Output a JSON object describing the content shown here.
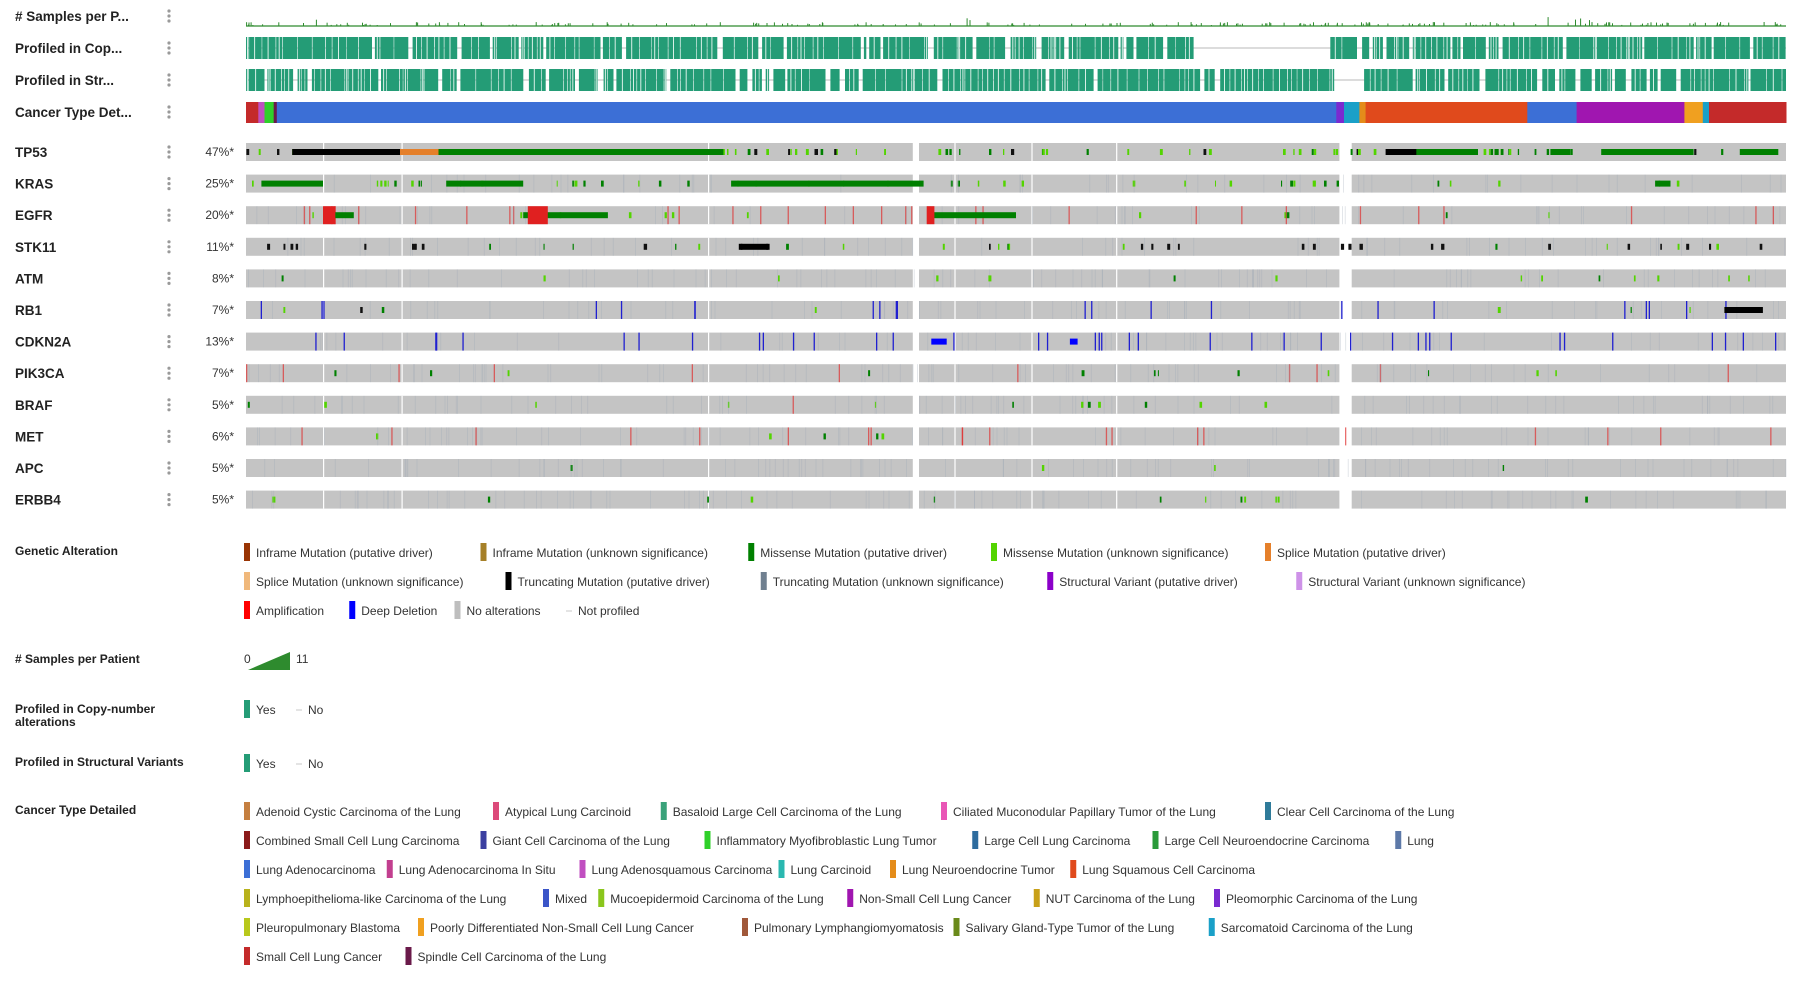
{
  "chart_data": {
    "type": "oncoprint",
    "clinical_tracks": [
      {
        "key": "samples",
        "label": "# Samples per P...",
        "kind": "bars"
      },
      {
        "key": "cna",
        "label": "Profiled in Cop...",
        "kind": "profiled"
      },
      {
        "key": "sv",
        "label": "Profiled in Str...",
        "kind": "profiled"
      },
      {
        "key": "cancer",
        "label": "Cancer Type Det...",
        "kind": "category"
      }
    ],
    "genes": [
      {
        "name": "TP53",
        "pct": "47%*"
      },
      {
        "name": "KRAS",
        "pct": "25%*"
      },
      {
        "name": "EGFR",
        "pct": "20%*"
      },
      {
        "name": "STK11",
        "pct": "11%*"
      },
      {
        "name": "ATM",
        "pct": "8%*"
      },
      {
        "name": "RB1",
        "pct": "7%*"
      },
      {
        "name": "CDKN2A",
        "pct": "13%*"
      },
      {
        "name": "PIK3CA",
        "pct": "7%*"
      },
      {
        "name": "BRAF",
        "pct": "5%*"
      },
      {
        "name": "MET",
        "pct": "6%*"
      },
      {
        "name": "APC",
        "pct": "5%*"
      },
      {
        "name": "ERBB4",
        "pct": "5%*"
      }
    ],
    "cancer_type_bar": [
      {
        "type": "Small Cell Lung Cancer",
        "share": 0.008
      },
      {
        "type": "Lung Adenosquamous Carcinoma",
        "share": 0.004
      },
      {
        "type": "Inflammatory Myofibroblastic Lung Tumor",
        "share": 0.006
      },
      {
        "type": "Spindle Cell Carcinoma of the Lung",
        "share": 0.002
      },
      {
        "type": "Lung Adenocarcinoma",
        "share": 0.688
      },
      {
        "type": "Pleomorphic Carcinoma of the Lung",
        "share": 0.005
      },
      {
        "type": "Sarcomatoid Carcinoma of the Lung",
        "share": 0.01
      },
      {
        "type": "Lung Neuroendocrine Tumor",
        "share": 0.004
      },
      {
        "type": "Lung Squamous Cell Carcinoma",
        "share": 0.105
      },
      {
        "type": "Lung Adenocarcinoma",
        "share": 0.032
      },
      {
        "type": "Non-Small Cell Lung Cancer",
        "share": 0.07
      },
      {
        "type": "Poorly Differentiated Non-Small Cell Lung Cancer",
        "share": 0.012
      },
      {
        "type": "Sarcomatoid Carcinoma of the Lung",
        "share": 0.004
      },
      {
        "type": "Small Cell Lung Cancer",
        "share": 0.05
      }
    ],
    "segment_fractions": [
      [
        0.0,
        0.101
      ],
      [
        0.103,
        0.433
      ],
      [
        0.436,
        0.51
      ],
      [
        0.512,
        0.563
      ],
      [
        0.565,
        0.71
      ],
      [
        0.712,
        0.71
      ],
      [
        0.718,
        0.721
      ],
      [
        0.723,
        0.804
      ],
      [
        0.806,
        1.0
      ]
    ],
    "segment_fractions_clinical": [
      [
        0.0,
        0.47
      ],
      [
        0.476,
        0.71
      ],
      [
        0.718,
        1.0
      ]
    ],
    "genetic_alteration_legend": [
      {
        "label": "Inframe Mutation (putative driver)",
        "color": "#993404"
      },
      {
        "label": "Inframe Mutation (unknown significance)",
        "color": "#a68028"
      },
      {
        "label": "Missense Mutation (putative driver)",
        "color": "#008000"
      },
      {
        "label": "Missense Mutation (unknown significance)",
        "color": "#53d400"
      },
      {
        "label": "Splice Mutation (putative driver)",
        "color": "#e5802b"
      },
      {
        "label": "Splice Mutation (unknown significance)",
        "color": "#f0b87b"
      },
      {
        "label": "Truncating Mutation (putative driver)",
        "color": "#000000"
      },
      {
        "label": "Truncating Mutation (unknown significance)",
        "color": "#708090"
      },
      {
        "label": "Structural Variant (putative driver)",
        "color": "#8b00c9"
      },
      {
        "label": "Structural Variant (unknown significance)",
        "color": "#ce92e8"
      },
      {
        "label": "Amplification",
        "color": "#ff0000"
      },
      {
        "label": "Deep Deletion",
        "color": "#0000ff"
      },
      {
        "label": "No alterations",
        "color": "#bebebe"
      },
      {
        "label": "Not profiled",
        "color": "#ffffff"
      }
    ],
    "cancer_type_legend": [
      {
        "label": "Adenoid Cystic Carcinoma of the Lung",
        "color": "#c57f40"
      },
      {
        "label": "Atypical Lung Carcinoid",
        "color": "#dc4a7a"
      },
      {
        "label": "Basaloid Large Cell Carcinoma of the Lung",
        "color": "#3aa27a"
      },
      {
        "label": "Ciliated Muconodular Papillary Tumor of the Lung",
        "color": "#e956b6"
      },
      {
        "label": "Clear Cell Carcinoma of the Lung",
        "color": "#2f7b9a"
      },
      {
        "label": "Combined Small Cell Lung Carcinoma",
        "color": "#8b1a1a"
      },
      {
        "label": "Giant Cell Carcinoma of the Lung",
        "color": "#3b3fa0"
      },
      {
        "label": "Inflammatory Myofibroblastic Lung Tumor",
        "color": "#2fd02a"
      },
      {
        "label": "Large Cell Lung Carcinoma",
        "color": "#2e6c9e"
      },
      {
        "label": "Large Cell Neuroendocrine Carcinoma",
        "color": "#2a9a3a"
      },
      {
        "label": "Lung",
        "color": "#5d79a8"
      },
      {
        "label": "Lung Adenocarcinoma",
        "color": "#3c6fd6"
      },
      {
        "label": "Lung Adenocarcinoma In Situ",
        "color": "#c23f8f"
      },
      {
        "label": "Lung Adenosquamous Carcinoma",
        "color": "#c04fc0"
      },
      {
        "label": "Lung Carcinoid",
        "color": "#2ab8b0"
      },
      {
        "label": "Lung Neuroendocrine Tumor",
        "color": "#e48c1a"
      },
      {
        "label": "Lung Squamous Cell Carcinoma",
        "color": "#e04a1c"
      },
      {
        "label": "Lymphoepithelioma-like Carcinoma of the Lung",
        "color": "#b8b21c"
      },
      {
        "label": "Mixed",
        "color": "#3b55c8"
      },
      {
        "label": "Mucoepidermoid Carcinoma of the Lung",
        "color": "#8ac61c"
      },
      {
        "label": "Non-Small Cell Lung Cancer",
        "color": "#a016b0"
      },
      {
        "label": "NUT Carcinoma of the Lung",
        "color": "#c8a018"
      },
      {
        "label": "Pleomorphic Carcinoma of the Lung",
        "color": "#7a2ad0"
      },
      {
        "label": "Pleuropulmonary Blastoma",
        "color": "#b8c81c"
      },
      {
        "label": "Poorly Differentiated Non-Small Cell Lung Cancer",
        "color": "#f0a020"
      },
      {
        "label": "Pulmonary Lymphangiomyomatosis",
        "color": "#a0583a"
      },
      {
        "label": "Salivary Gland-Type Tumor of the Lung",
        "color": "#6a8a1a"
      },
      {
        "label": "Sarcomatoid Carcinoma of the Lung",
        "color": "#1aa0c8"
      },
      {
        "label": "Small Cell Lung Cancer",
        "color": "#c42a2a"
      },
      {
        "label": "Spindle Cell Carcinoma of the Lung",
        "color": "#6a1a4a"
      }
    ],
    "legend_titles": {
      "genetic": "Genetic Alteration",
      "samples": "# Samples per Patient",
      "cna": "Profiled in Copy-number alterations",
      "sv": "Profiled in Structural Variants",
      "cancer": "Cancer Type Detailed"
    },
    "samples_range": {
      "min": "0",
      "max": "11"
    },
    "profiled_legend": {
      "yes": "Yes",
      "no": "No",
      "yes_color": "#249c76"
    },
    "colors": {
      "no_alteration": "#c4c4c4",
      "profiled": "#249c76",
      "samples_bar": "#2e8b2e"
    }
  }
}
